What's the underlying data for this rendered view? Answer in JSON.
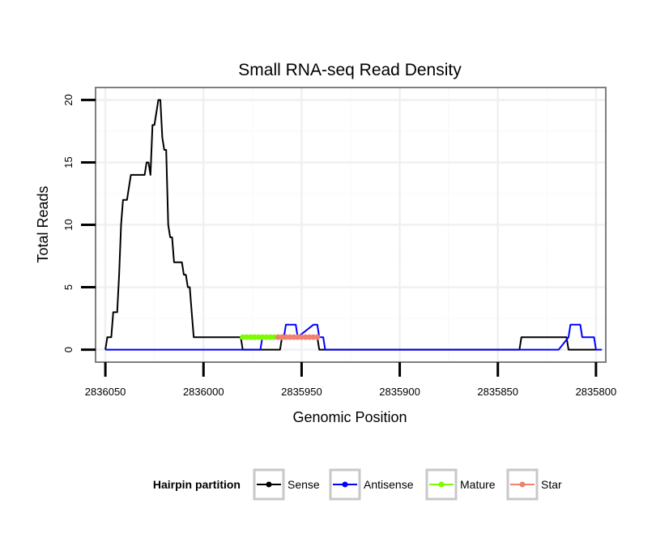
{
  "chart_data": {
    "type": "line",
    "title": "Small RNA-seq Read Density",
    "xlabel": "Genomic Position",
    "ylabel": "Total Reads",
    "xlim": [
      2836055,
      2835795
    ],
    "ylim": [
      -1,
      21
    ],
    "x_reversed": true,
    "grid": true,
    "x_ticks": [
      2836050,
      2836000,
      2835950,
      2835900,
      2835850,
      2835800
    ],
    "x_tick_labels": [
      "2836050",
      "2836000",
      "2835950",
      "2835900",
      "2835850",
      "2835800"
    ],
    "y_ticks": [
      0,
      5,
      10,
      15,
      20
    ],
    "y_tick_labels": [
      "0",
      "5",
      "10",
      "15",
      "20"
    ],
    "legend": {
      "title": "Hairpin partition",
      "position": "bottom",
      "entries": [
        {
          "label": "Sense",
          "color": "#000000"
        },
        {
          "label": "Antisense",
          "color": "#0000ff"
        },
        {
          "label": "Mature",
          "color": "#7cfc00"
        },
        {
          "label": "Star",
          "color": "#f08070"
        }
      ]
    },
    "series": [
      {
        "name": "Sense",
        "color": "#000000",
        "x": [
          2836050,
          2836049,
          2836047,
          2836046,
          2836044,
          2836043,
          2836042,
          2836041,
          2836040,
          2836039,
          2836037,
          2836036,
          2836034,
          2836033,
          2836030,
          2836029,
          2836028,
          2836027,
          2836026,
          2836025,
          2836024,
          2836023,
          2836022,
          2836021,
          2836020,
          2836019,
          2836018,
          2836017,
          2836016,
          2836015,
          2836013,
          2836012,
          2836011,
          2836010,
          2836009,
          2836008,
          2836007,
          2836006,
          2836005,
          2836004,
          2835990,
          2835981,
          2835980,
          2835979,
          2835961,
          2835960,
          2835959,
          2835958,
          2835942,
          2835941,
          2835940,
          2835839,
          2835838,
          2835815,
          2835814,
          2835800
        ],
        "y": [
          0,
          1,
          1,
          3,
          3,
          6,
          10,
          12,
          12,
          12,
          14,
          14,
          14,
          14,
          14,
          15,
          15,
          14,
          18,
          18,
          19,
          20,
          20,
          17,
          16,
          16,
          10,
          9,
          9,
          7,
          7,
          7,
          7,
          6,
          6,
          5,
          5,
          3,
          1,
          1,
          1,
          1,
          0,
          0,
          0,
          1,
          1,
          1,
          1,
          0,
          0,
          0,
          1,
          1,
          0,
          0
        ]
      },
      {
        "name": "Antisense",
        "color": "#0000ff",
        "x": [
          2836050,
          2835971,
          2835970,
          2835959,
          2835958,
          2835953,
          2835952,
          2835944,
          2835943,
          2835942,
          2835941,
          2835939,
          2835938,
          2835936,
          2835935,
          2835934,
          2835933,
          2835930,
          2835929,
          2835835,
          2835834,
          2835820,
          2835819,
          2835814,
          2835813,
          2835808,
          2835807,
          2835801,
          2835800,
          2835797
        ],
        "y": [
          0,
          0,
          1,
          1,
          2,
          2,
          1,
          2,
          2,
          2,
          1,
          1,
          0,
          0,
          0,
          0,
          0,
          0,
          0,
          0,
          0,
          0,
          0,
          1,
          2,
          2,
          1,
          1,
          0,
          0
        ]
      },
      {
        "name": "Mature",
        "color": "#7cfc00",
        "x": [
          2835980,
          2835978,
          2835976,
          2835974,
          2835972,
          2835970,
          2835968,
          2835966,
          2835964,
          2835962,
          2835960,
          2835958
        ],
        "y": [
          1,
          1,
          1,
          1,
          1,
          1,
          1,
          1,
          1,
          1,
          1,
          1
        ]
      },
      {
        "name": "Star",
        "color": "#f08070",
        "x": [
          2835962,
          2835960,
          2835958,
          2835956,
          2835954,
          2835952,
          2835950,
          2835948,
          2835946,
          2835944,
          2835942
        ],
        "y": [
          1,
          1,
          1,
          1,
          1,
          1,
          1,
          1,
          1,
          1,
          1
        ]
      }
    ]
  }
}
